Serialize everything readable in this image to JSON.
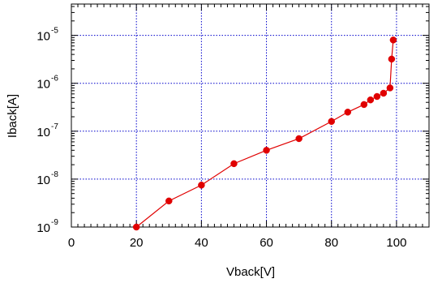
{
  "chart_data": {
    "type": "line",
    "title": "",
    "xlabel": "Vback[V]",
    "ylabel": "Iback[A]",
    "xlim": [
      0,
      110
    ],
    "ylim": [
      1e-09,
      4.5e-05
    ],
    "y_scale": "log",
    "grid": true,
    "x_ticks": [
      0,
      20,
      40,
      60,
      80,
      100
    ],
    "x_tick_labels": [
      "0",
      "20",
      "40",
      "60",
      "80",
      "100"
    ],
    "y_ticks": [
      1e-09,
      1e-08,
      1e-07,
      1e-06,
      1e-05
    ],
    "y_tick_labels": [
      {
        "base": "10",
        "exp": "-9"
      },
      {
        "base": "10",
        "exp": "-8"
      },
      {
        "base": "10",
        "exp": "-7"
      },
      {
        "base": "10",
        "exp": "-6"
      },
      {
        "base": "10",
        "exp": "-5"
      }
    ],
    "series": [
      {
        "color": "#e00000",
        "x": [
          20,
          30,
          40,
          50,
          60,
          70,
          80,
          85,
          90,
          92,
          94,
          96,
          98,
          98.5,
          99
        ],
        "y": [
          1e-09,
          3.5e-09,
          7.5e-09,
          2.1e-08,
          4e-08,
          7e-08,
          1.6e-07,
          2.5e-07,
          3.6e-07,
          4.5e-07,
          5.3e-07,
          6.2e-07,
          8e-07,
          3.2e-06,
          8e-06
        ]
      }
    ],
    "grid_color": "#0000cc",
    "axis_color": "#000000"
  }
}
